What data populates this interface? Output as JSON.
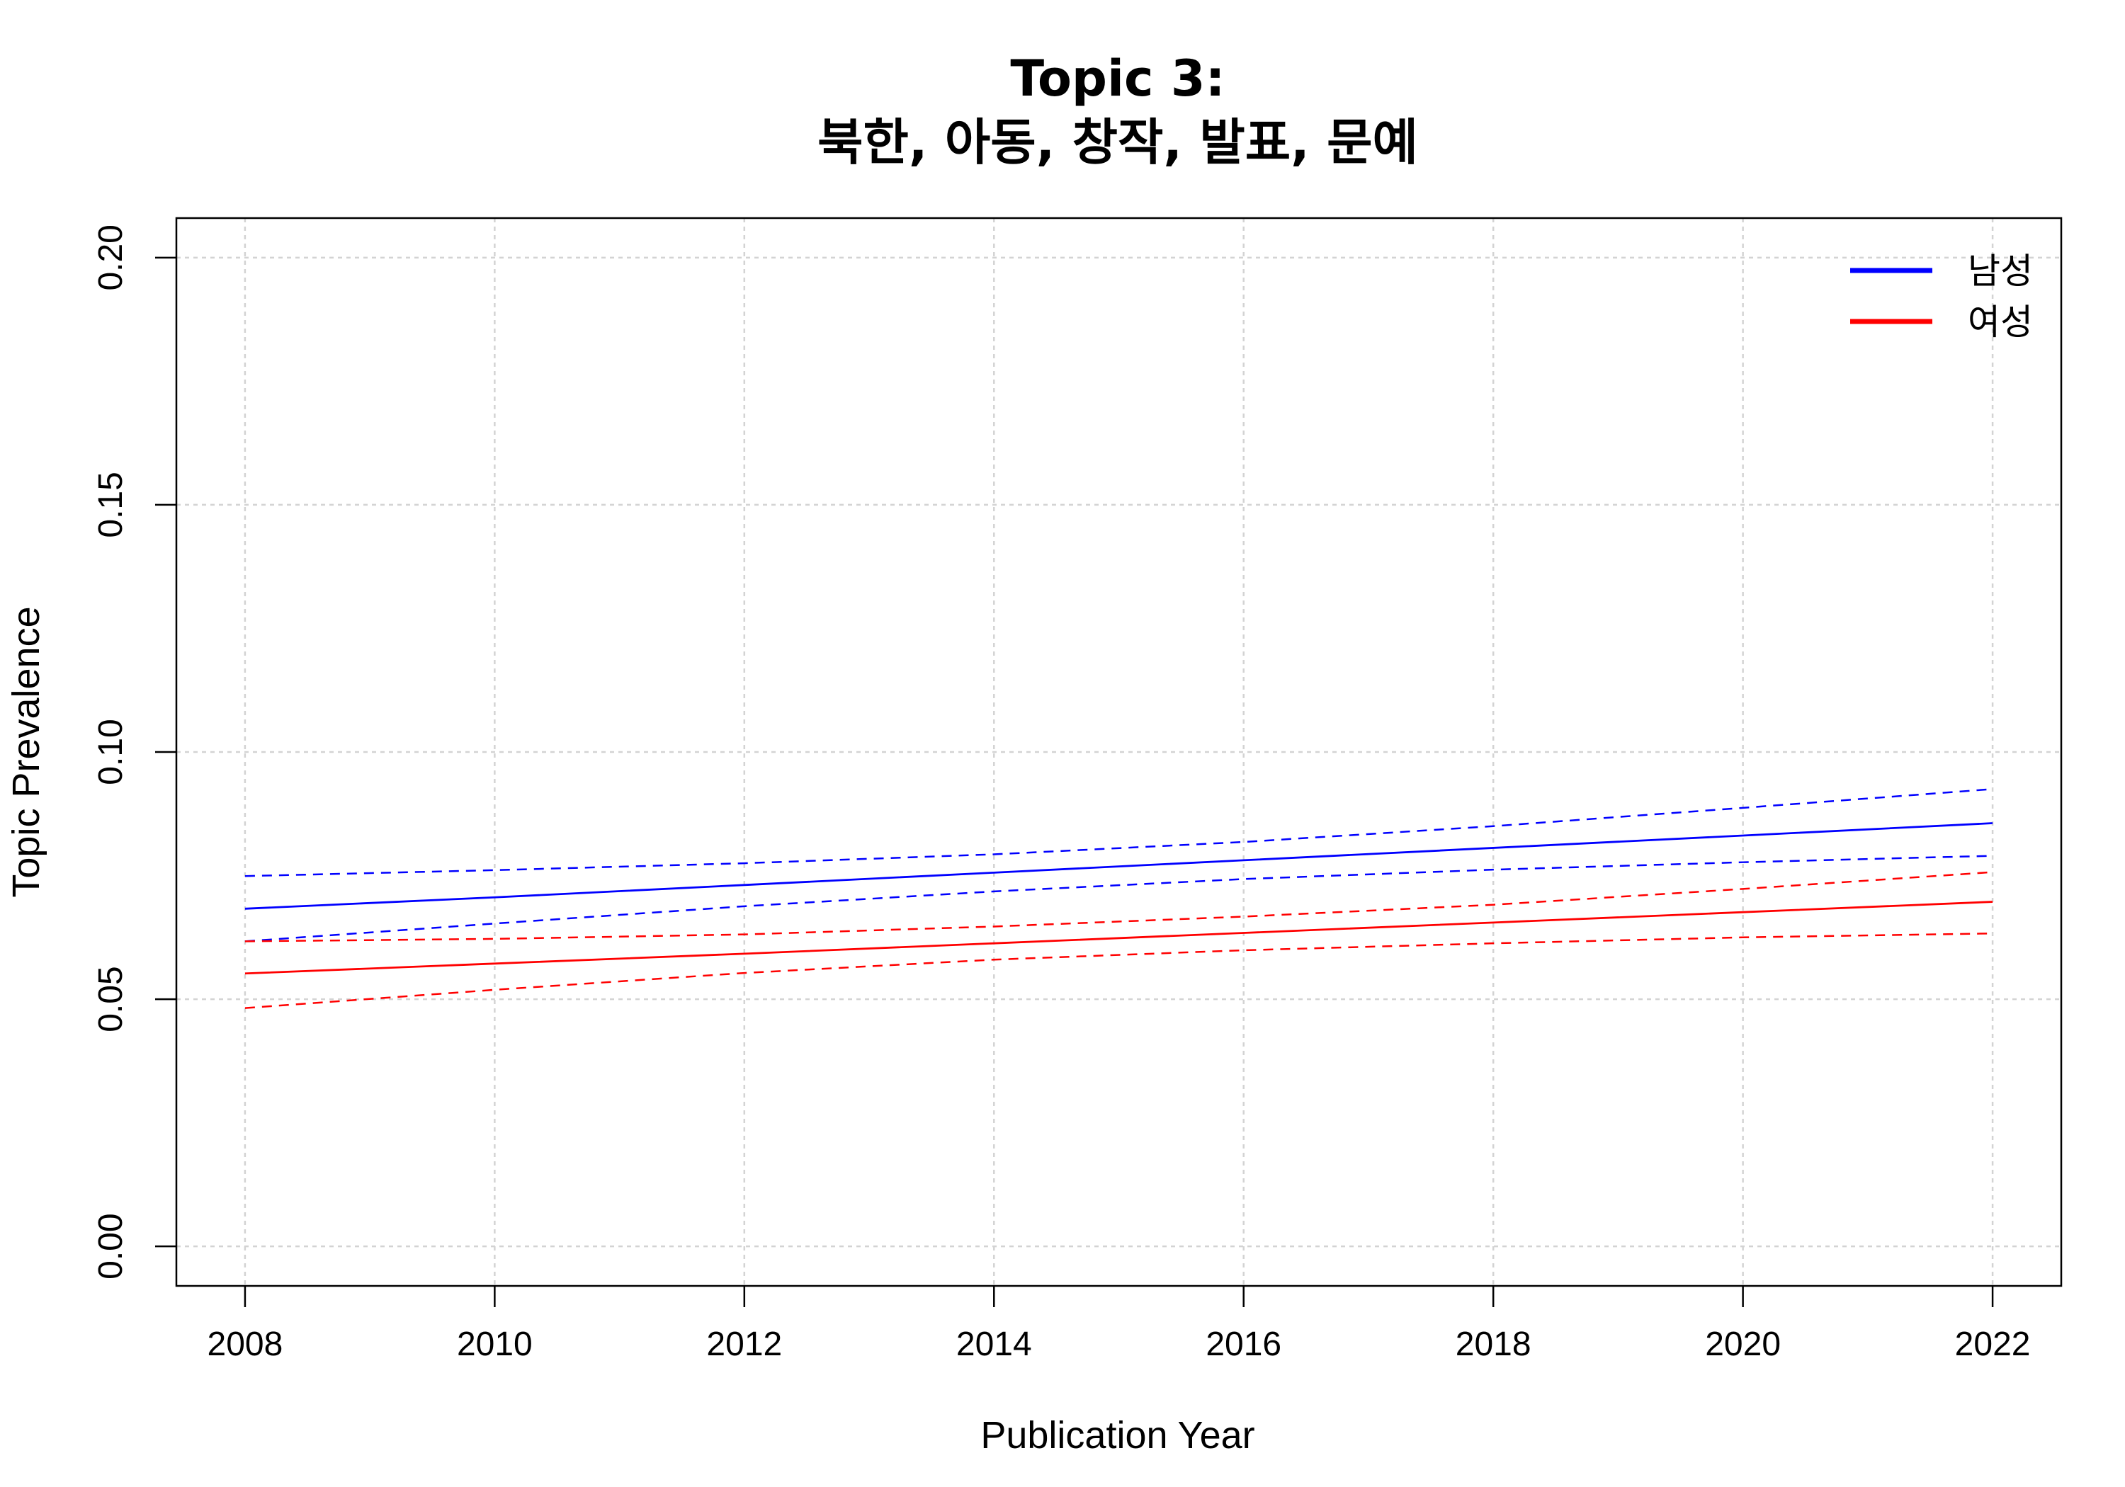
{
  "chart_data": {
    "type": "line",
    "title": [
      "Topic 3:",
      "북한, 아동, 창작, 발표, 문예"
    ],
    "xlabel": "Publication Year",
    "ylabel": "Topic Prevalence",
    "xlim": [
      2007.45,
      2022.55
    ],
    "ylim": [
      -0.008,
      0.208
    ],
    "x_ticks": [
      2008,
      2010,
      2012,
      2014,
      2016,
      2018,
      2020,
      2022
    ],
    "x_tick_labels": [
      "2008",
      "2010",
      "2012",
      "2014",
      "2016",
      "2018",
      "2020",
      "2022"
    ],
    "y_ticks": [
      0,
      0.05,
      0.1,
      0.15,
      0.2
    ],
    "y_tick_labels": [
      "0.00",
      "0.05",
      "0.10",
      "0.15",
      "0.20"
    ],
    "grid": true,
    "legend_position": "top-right",
    "x": [
      2008,
      2010,
      2012,
      2014,
      2016,
      2018,
      2020,
      2022
    ],
    "series": [
      {
        "name": "남성",
        "color": "#0000ff",
        "mean": [
          0.0683,
          0.0706,
          0.0731,
          0.0756,
          0.0781,
          0.0806,
          0.0831,
          0.0856
        ],
        "upper": [
          0.0749,
          0.0761,
          0.0775,
          0.0793,
          0.0818,
          0.085,
          0.0887,
          0.0925
        ],
        "lower": [
          0.0617,
          0.0653,
          0.0688,
          0.0718,
          0.0743,
          0.0762,
          0.0777,
          0.079
        ]
      },
      {
        "name": "여성",
        "color": "#ff0000",
        "mean": [
          0.0552,
          0.0572,
          0.0592,
          0.0613,
          0.0634,
          0.0655,
          0.0676,
          0.0697
        ],
        "upper": [
          0.0617,
          0.0622,
          0.0631,
          0.0647,
          0.0667,
          0.0691,
          0.0723,
          0.0757
        ],
        "lower": [
          0.0482,
          0.0519,
          0.0553,
          0.058,
          0.0599,
          0.0613,
          0.0625,
          0.0633
        ]
      }
    ]
  }
}
